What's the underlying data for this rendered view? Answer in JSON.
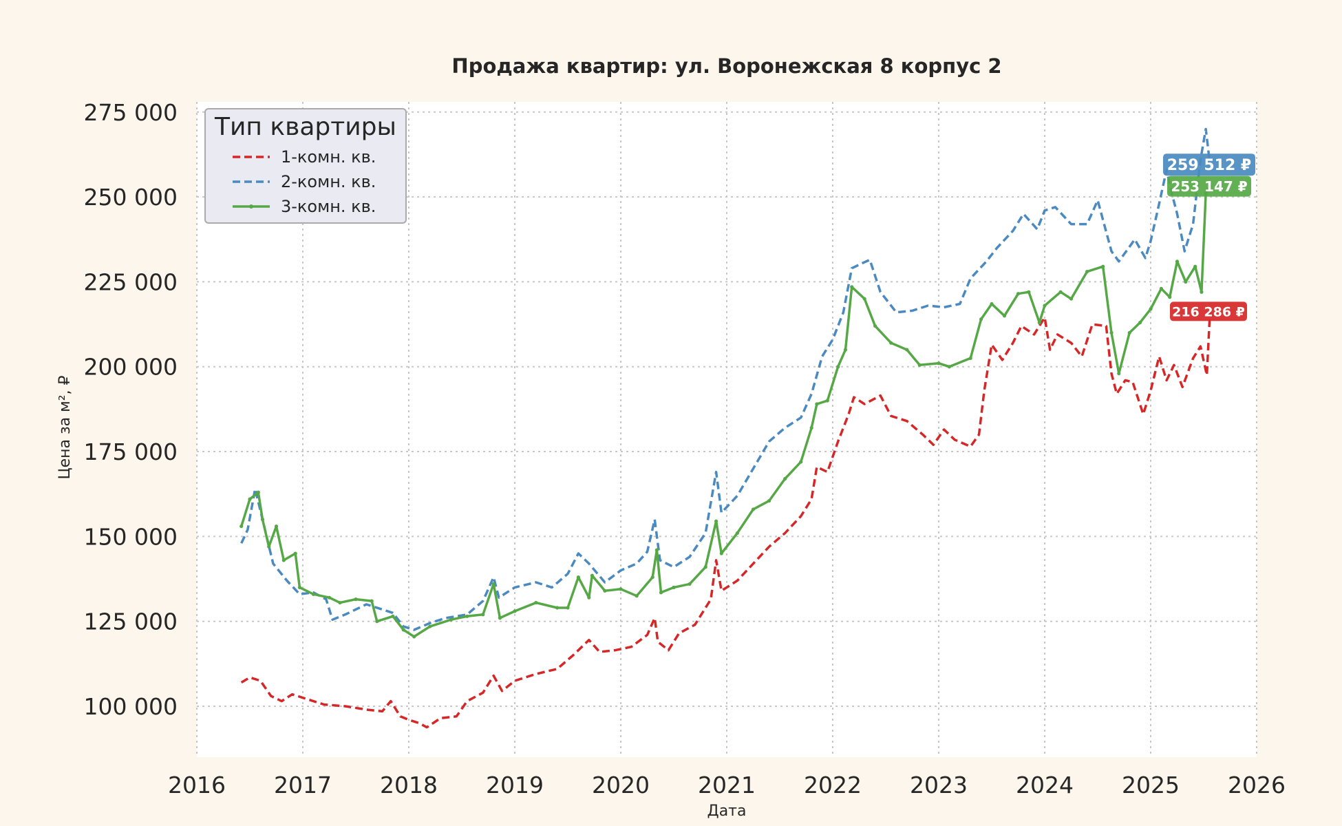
{
  "chart_data": {
    "type": "line",
    "title": "Продажа квартир: ул. Воронежская 8 корпус 2",
    "xlabel": "Дата",
    "ylabel": "Цена за м², ₽",
    "xlim": [
      2016.0,
      2026.0
    ],
    "ylim": [
      85000,
      278000
    ],
    "x_ticks": [
      2016,
      2017,
      2018,
      2019,
      2020,
      2021,
      2022,
      2023,
      2024,
      2025,
      2026
    ],
    "x_tick_labels": [
      "2016",
      "2017",
      "2018",
      "2019",
      "2020",
      "2021",
      "2022",
      "2023",
      "2024",
      "2025",
      "2026"
    ],
    "y_ticks": [
      100000,
      125000,
      150000,
      175000,
      200000,
      225000,
      250000,
      275000
    ],
    "y_tick_labels": [
      "100 000",
      "125 000",
      "150 000",
      "175 000",
      "200 000",
      "225 000",
      "250 000",
      "275 000"
    ],
    "grid": true,
    "legend": {
      "title": "Тип квартиры",
      "position": "top-left"
    },
    "series": [
      {
        "name": "1-комн. кв.",
        "color": "#d62728",
        "dash": "dashed",
        "end_label": "216 286 ₽",
        "end_value": 216286,
        "points": [
          [
            2016.42,
            107000
          ],
          [
            2016.5,
            108500
          ],
          [
            2016.6,
            107500
          ],
          [
            2016.7,
            103000
          ],
          [
            2016.8,
            101500
          ],
          [
            2016.9,
            103500
          ],
          [
            2017.0,
            102500
          ],
          [
            2017.2,
            100500
          ],
          [
            2017.4,
            100000
          ],
          [
            2017.6,
            99000
          ],
          [
            2017.75,
            98500
          ],
          [
            2017.83,
            101500
          ],
          [
            2017.92,
            97000
          ],
          [
            2018.0,
            96000
          ],
          [
            2018.1,
            95000
          ],
          [
            2018.17,
            93800
          ],
          [
            2018.3,
            96500
          ],
          [
            2018.45,
            97000
          ],
          [
            2018.55,
            101500
          ],
          [
            2018.7,
            104000
          ],
          [
            2018.8,
            109000
          ],
          [
            2018.88,
            104500
          ],
          [
            2019.0,
            107500
          ],
          [
            2019.2,
            109500
          ],
          [
            2019.4,
            111000
          ],
          [
            2019.55,
            115000
          ],
          [
            2019.7,
            119500
          ],
          [
            2019.8,
            116000
          ],
          [
            2019.95,
            116500
          ],
          [
            2020.1,
            117500
          ],
          [
            2020.25,
            121000
          ],
          [
            2020.32,
            126000
          ],
          [
            2020.35,
            119000
          ],
          [
            2020.45,
            116500
          ],
          [
            2020.55,
            121500
          ],
          [
            2020.7,
            124000
          ],
          [
            2020.85,
            131500
          ],
          [
            2020.9,
            143000
          ],
          [
            2020.95,
            134000
          ],
          [
            2021.1,
            137000
          ],
          [
            2021.25,
            142000
          ],
          [
            2021.4,
            147000
          ],
          [
            2021.55,
            151000
          ],
          [
            2021.7,
            156000
          ],
          [
            2021.8,
            161000
          ],
          [
            2021.85,
            170500
          ],
          [
            2021.95,
            169000
          ],
          [
            2022.05,
            178000
          ],
          [
            2022.15,
            186000
          ],
          [
            2022.2,
            191000
          ],
          [
            2022.3,
            189000
          ],
          [
            2022.45,
            191500
          ],
          [
            2022.55,
            185500
          ],
          [
            2022.7,
            184000
          ],
          [
            2022.85,
            180000
          ],
          [
            2022.95,
            177000
          ],
          [
            2023.05,
            181500
          ],
          [
            2023.15,
            178500
          ],
          [
            2023.3,
            176500
          ],
          [
            2023.38,
            180000
          ],
          [
            2023.43,
            193000
          ],
          [
            2023.5,
            206500
          ],
          [
            2023.6,
            202000
          ],
          [
            2023.7,
            207000
          ],
          [
            2023.78,
            212000
          ],
          [
            2023.9,
            209500
          ],
          [
            2024.0,
            214500
          ],
          [
            2024.05,
            205000
          ],
          [
            2024.12,
            209500
          ],
          [
            2024.25,
            207000
          ],
          [
            2024.35,
            203000
          ],
          [
            2024.45,
            212500
          ],
          [
            2024.58,
            212000
          ],
          [
            2024.63,
            198000
          ],
          [
            2024.68,
            192000
          ],
          [
            2024.76,
            196000
          ],
          [
            2024.83,
            195500
          ],
          [
            2024.93,
            186000
          ],
          [
            2025.0,
            193000
          ],
          [
            2025.08,
            203000
          ],
          [
            2025.15,
            196000
          ],
          [
            2025.22,
            200500
          ],
          [
            2025.3,
            194000
          ],
          [
            2025.4,
            202500
          ],
          [
            2025.47,
            206000
          ],
          [
            2025.53,
            197500
          ],
          [
            2025.56,
            216286
          ]
        ]
      },
      {
        "name": "2-комн. кв.",
        "color": "#4a8ac0",
        "dash": "dashed",
        "end_label": "259 512 ₽",
        "end_value": 259512,
        "points": [
          [
            2016.42,
            148000
          ],
          [
            2016.48,
            152000
          ],
          [
            2016.55,
            164000
          ],
          [
            2016.62,
            155000
          ],
          [
            2016.72,
            142000
          ],
          [
            2016.85,
            137000
          ],
          [
            2016.97,
            133000
          ],
          [
            2017.1,
            133500
          ],
          [
            2017.22,
            131500
          ],
          [
            2017.28,
            125500
          ],
          [
            2017.4,
            127000
          ],
          [
            2017.6,
            130000
          ],
          [
            2017.75,
            128500
          ],
          [
            2017.85,
            127500
          ],
          [
            2017.95,
            123500
          ],
          [
            2018.05,
            122500
          ],
          [
            2018.2,
            124500
          ],
          [
            2018.35,
            126000
          ],
          [
            2018.55,
            127000
          ],
          [
            2018.7,
            131000
          ],
          [
            2018.8,
            138000
          ],
          [
            2018.85,
            132000
          ],
          [
            2019.0,
            135000
          ],
          [
            2019.2,
            136500
          ],
          [
            2019.35,
            135000
          ],
          [
            2019.5,
            139000
          ],
          [
            2019.6,
            145000
          ],
          [
            2019.7,
            142000
          ],
          [
            2019.85,
            136500
          ],
          [
            2020.0,
            140000
          ],
          [
            2020.15,
            142000
          ],
          [
            2020.25,
            145500
          ],
          [
            2020.32,
            155000
          ],
          [
            2020.37,
            143000
          ],
          [
            2020.5,
            141000
          ],
          [
            2020.65,
            144000
          ],
          [
            2020.8,
            151000
          ],
          [
            2020.9,
            169000
          ],
          [
            2020.95,
            157000
          ],
          [
            2021.1,
            162000
          ],
          [
            2021.25,
            170000
          ],
          [
            2021.4,
            178000
          ],
          [
            2021.55,
            182000
          ],
          [
            2021.7,
            185000
          ],
          [
            2021.8,
            192000
          ],
          [
            2021.9,
            203000
          ],
          [
            2022.0,
            208000
          ],
          [
            2022.1,
            216000
          ],
          [
            2022.18,
            229000
          ],
          [
            2022.28,
            230500
          ],
          [
            2022.35,
            231500
          ],
          [
            2022.45,
            222000
          ],
          [
            2022.6,
            216000
          ],
          [
            2022.75,
            216500
          ],
          [
            2022.9,
            218000
          ],
          [
            2023.05,
            217500
          ],
          [
            2023.2,
            218500
          ],
          [
            2023.3,
            226000
          ],
          [
            2023.45,
            231000
          ],
          [
            2023.55,
            235000
          ],
          [
            2023.7,
            240000
          ],
          [
            2023.8,
            245000
          ],
          [
            2023.93,
            240500
          ],
          [
            2024.0,
            246000
          ],
          [
            2024.1,
            247000
          ],
          [
            2024.25,
            242000
          ],
          [
            2024.4,
            242000
          ],
          [
            2024.5,
            249000
          ],
          [
            2024.63,
            234000
          ],
          [
            2024.7,
            231000
          ],
          [
            2024.85,
            237500
          ],
          [
            2024.95,
            232000
          ],
          [
            2025.0,
            237000
          ],
          [
            2025.08,
            248000
          ],
          [
            2025.15,
            258000
          ],
          [
            2025.2,
            251000
          ],
          [
            2025.25,
            245000
          ],
          [
            2025.32,
            234000
          ],
          [
            2025.4,
            242000
          ],
          [
            2025.47,
            261000
          ],
          [
            2025.52,
            270000
          ],
          [
            2025.56,
            259512
          ]
        ]
      },
      {
        "name": "3-комн. кв.",
        "color": "#55a845",
        "dash": "solid",
        "end_label": "253 147 ₽",
        "end_value": 253147,
        "points": [
          [
            2016.42,
            153000
          ],
          [
            2016.5,
            161000
          ],
          [
            2016.58,
            163000
          ],
          [
            2016.62,
            155000
          ],
          [
            2016.68,
            147000
          ],
          [
            2016.75,
            153000
          ],
          [
            2016.82,
            143000
          ],
          [
            2016.93,
            145000
          ],
          [
            2016.97,
            135000
          ],
          [
            2017.1,
            133000
          ],
          [
            2017.25,
            132000
          ],
          [
            2017.35,
            130500
          ],
          [
            2017.5,
            131500
          ],
          [
            2017.65,
            131000
          ],
          [
            2017.7,
            125000
          ],
          [
            2017.85,
            126500
          ],
          [
            2017.95,
            122500
          ],
          [
            2018.05,
            120500
          ],
          [
            2018.2,
            123500
          ],
          [
            2018.4,
            125500
          ],
          [
            2018.55,
            126500
          ],
          [
            2018.7,
            127000
          ],
          [
            2018.8,
            136000
          ],
          [
            2018.86,
            126000
          ],
          [
            2019.0,
            128000
          ],
          [
            2019.2,
            130500
          ],
          [
            2019.4,
            129000
          ],
          [
            2019.5,
            129000
          ],
          [
            2019.6,
            138000
          ],
          [
            2019.7,
            132000
          ],
          [
            2019.73,
            138500
          ],
          [
            2019.85,
            134000
          ],
          [
            2020.0,
            134500
          ],
          [
            2020.15,
            132500
          ],
          [
            2020.3,
            138000
          ],
          [
            2020.34,
            146000
          ],
          [
            2020.38,
            133500
          ],
          [
            2020.5,
            135000
          ],
          [
            2020.65,
            136000
          ],
          [
            2020.8,
            141000
          ],
          [
            2020.9,
            154500
          ],
          [
            2020.95,
            145000
          ],
          [
            2021.1,
            151000
          ],
          [
            2021.25,
            158000
          ],
          [
            2021.4,
            160500
          ],
          [
            2021.55,
            167000
          ],
          [
            2021.7,
            172000
          ],
          [
            2021.8,
            182000
          ],
          [
            2021.85,
            189000
          ],
          [
            2021.95,
            190000
          ],
          [
            2022.05,
            200000
          ],
          [
            2022.12,
            205000
          ],
          [
            2022.18,
            223500
          ],
          [
            2022.3,
            220000
          ],
          [
            2022.4,
            212000
          ],
          [
            2022.55,
            207000
          ],
          [
            2022.7,
            205000
          ],
          [
            2022.82,
            200500
          ],
          [
            2023.0,
            201000
          ],
          [
            2023.1,
            200000
          ],
          [
            2023.3,
            202500
          ],
          [
            2023.4,
            214000
          ],
          [
            2023.5,
            218500
          ],
          [
            2023.62,
            215000
          ],
          [
            2023.75,
            221500
          ],
          [
            2023.85,
            222000
          ],
          [
            2023.95,
            213000
          ],
          [
            2024.0,
            218000
          ],
          [
            2024.15,
            222000
          ],
          [
            2024.25,
            220000
          ],
          [
            2024.4,
            228000
          ],
          [
            2024.55,
            229500
          ],
          [
            2024.63,
            210000
          ],
          [
            2024.7,
            198000
          ],
          [
            2024.8,
            210000
          ],
          [
            2024.9,
            213000
          ],
          [
            2025.0,
            217000
          ],
          [
            2025.1,
            223000
          ],
          [
            2025.18,
            220500
          ],
          [
            2025.25,
            231000
          ],
          [
            2025.33,
            225000
          ],
          [
            2025.42,
            229500
          ],
          [
            2025.48,
            222000
          ],
          [
            2025.52,
            251000
          ],
          [
            2025.56,
            253147
          ]
        ]
      }
    ]
  }
}
